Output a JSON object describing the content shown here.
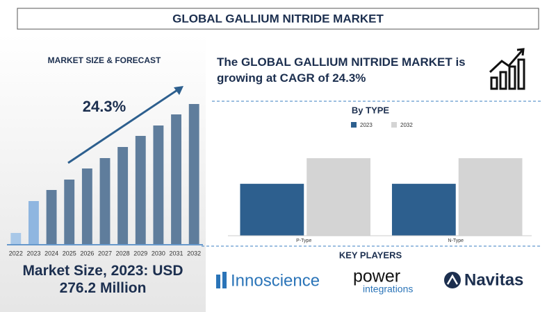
{
  "header": {
    "title": "GLOBAL GALLIUM NITRIDE MARKET"
  },
  "headline": "The GLOBAL GALLIUM NITRIDE MARKET is growing at CAGR of 24.3%",
  "footer": "Market Size, 2023: USD 276.2 Million",
  "key_players": {
    "title": "KEY PLAYERS",
    "items": [
      {
        "text": "Innoscience"
      },
      {
        "lines": [
          "power",
          "integrations"
        ]
      },
      {
        "text": "Navitas"
      }
    ]
  },
  "chart_data": [
    {
      "type": "bar",
      "title": "MARKET SIZE & FORECAST",
      "annotation": "24.3%",
      "categories": [
        "2022",
        "2023",
        "2024",
        "2025",
        "2026",
        "2027",
        "2028",
        "2029",
        "2030",
        "2031",
        "2032"
      ],
      "values": [
        16,
        62,
        78,
        93,
        109,
        124,
        140,
        156,
        171,
        187,
        202
      ],
      "colors": [
        "#a9c8e8",
        "#8fb6e0",
        "#5f7d9c",
        "#5f7d9c",
        "#5f7d9c",
        "#5f7d9c",
        "#5f7d9c",
        "#5f7d9c",
        "#5f7d9c",
        "#5f7d9c",
        "#5f7d9c"
      ],
      "ylim": [
        0,
        210
      ]
    },
    {
      "type": "grouped-bar",
      "title": "By TYPE",
      "categories": [
        "P-Type",
        "N-Type"
      ],
      "series": [
        {
          "name": "2023",
          "color": "#2d5f8e",
          "values": [
            73,
            73
          ]
        },
        {
          "name": "2032",
          "color": "#d4d4d4",
          "values": [
            109,
            109
          ]
        }
      ],
      "ylim": [
        0,
        115
      ]
    }
  ]
}
